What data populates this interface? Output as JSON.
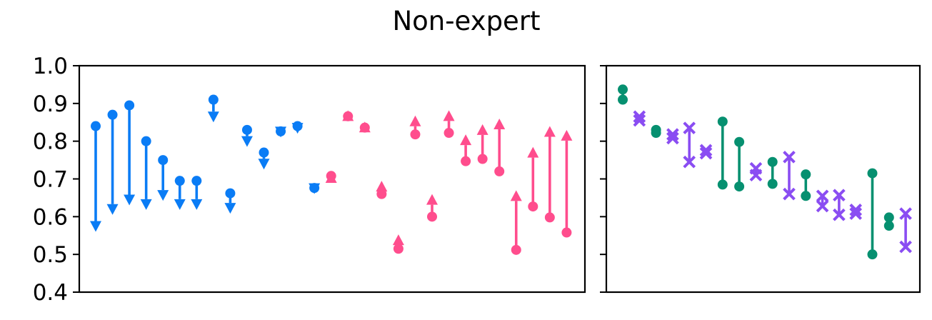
{
  "chart_data": {
    "type": "scatter",
    "title": "Non-expert",
    "ylim": [
      0.4,
      1.0
    ],
    "yticks": [
      "1.0",
      "0.9",
      "0.8",
      "0.7",
      "0.6",
      "0.5",
      "0.4"
    ],
    "grid": false,
    "colors": {
      "decrease": "#0a7cf5",
      "increase": "#ff4d8d",
      "circle_pair": "#069070",
      "cross_pair": "#8a4df2",
      "axis": "#000000"
    },
    "panels": [
      {
        "name": "left",
        "marker_style": "arrow",
        "pairs": [
          {
            "x": 1,
            "start": 0.84,
            "end": 0.56
          },
          {
            "x": 2,
            "start": 0.87,
            "end": 0.605
          },
          {
            "x": 3,
            "start": 0.895,
            "end": 0.63
          },
          {
            "x": 4,
            "start": 0.8,
            "end": 0.618
          },
          {
            "x": 5,
            "start": 0.75,
            "end": 0.642
          },
          {
            "x": 6,
            "start": 0.695,
            "end": 0.618
          },
          {
            "x": 7,
            "start": 0.695,
            "end": 0.618
          },
          {
            "x": 8,
            "start": 0.91,
            "end": 0.85
          },
          {
            "x": 9,
            "start": 0.662,
            "end": 0.608
          },
          {
            "x": 10,
            "start": 0.83,
            "end": 0.785
          },
          {
            "x": 11,
            "start": 0.77,
            "end": 0.725
          },
          {
            "x": 12,
            "start": 0.826,
            "end": 0.81
          },
          {
            "x": 13,
            "start": 0.84,
            "end": 0.82
          },
          {
            "x": 14,
            "start": 0.676,
            "end": 0.66
          },
          {
            "x": 15,
            "start": 0.708,
            "end": 0.718
          },
          {
            "x": 16,
            "start": 0.866,
            "end": 0.882
          },
          {
            "x": 17,
            "start": 0.836,
            "end": 0.852
          },
          {
            "x": 18,
            "start": 0.66,
            "end": 0.695
          },
          {
            "x": 19,
            "start": 0.515,
            "end": 0.553
          },
          {
            "x": 20,
            "start": 0.818,
            "end": 0.868
          },
          {
            "x": 21,
            "start": 0.6,
            "end": 0.66
          },
          {
            "x": 22,
            "start": 0.822,
            "end": 0.882
          },
          {
            "x": 23,
            "start": 0.747,
            "end": 0.818
          },
          {
            "x": 24,
            "start": 0.753,
            "end": 0.845
          },
          {
            "x": 25,
            "start": 0.72,
            "end": 0.86
          },
          {
            "x": 26,
            "start": 0.512,
            "end": 0.67
          },
          {
            "x": 27,
            "start": 0.627,
            "end": 0.785
          },
          {
            "x": 28,
            "start": 0.598,
            "end": 0.84
          },
          {
            "x": 29,
            "start": 0.558,
            "end": 0.83
          }
        ]
      },
      {
        "name": "right",
        "marker_style": "pair",
        "pairs": [
          {
            "x": 1,
            "a": 0.937,
            "b": 0.91,
            "marker": "circle"
          },
          {
            "x": 2,
            "a": 0.865,
            "b": 0.855,
            "marker": "cross"
          },
          {
            "x": 3,
            "a": 0.83,
            "b": 0.822,
            "marker": "circle"
          },
          {
            "x": 4,
            "a": 0.818,
            "b": 0.808,
            "marker": "cross"
          },
          {
            "x": 5,
            "a": 0.835,
            "b": 0.745,
            "marker": "cross"
          },
          {
            "x": 6,
            "a": 0.776,
            "b": 0.768,
            "marker": "cross"
          },
          {
            "x": 7,
            "a": 0.852,
            "b": 0.685,
            "marker": "circle"
          },
          {
            "x": 8,
            "a": 0.798,
            "b": 0.68,
            "marker": "circle"
          },
          {
            "x": 9,
            "a": 0.728,
            "b": 0.71,
            "marker": "cross"
          },
          {
            "x": 10,
            "a": 0.745,
            "b": 0.687,
            "marker": "circle"
          },
          {
            "x": 11,
            "a": 0.758,
            "b": 0.66,
            "marker": "cross"
          },
          {
            "x": 12,
            "a": 0.712,
            "b": 0.655,
            "marker": "circle"
          },
          {
            "x": 13,
            "a": 0.655,
            "b": 0.628,
            "marker": "cross"
          },
          {
            "x": 14,
            "a": 0.657,
            "b": 0.605,
            "marker": "cross"
          },
          {
            "x": 15,
            "a": 0.618,
            "b": 0.608,
            "marker": "cross"
          },
          {
            "x": 16,
            "a": 0.715,
            "b": 0.5,
            "marker": "circle"
          },
          {
            "x": 17,
            "a": 0.598,
            "b": 0.576,
            "marker": "circle"
          },
          {
            "x": 18,
            "a": 0.608,
            "b": 0.52,
            "marker": "cross"
          }
        ]
      }
    ]
  }
}
